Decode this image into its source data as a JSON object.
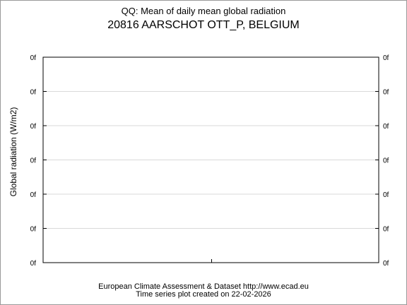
{
  "chart_data": {
    "type": "line",
    "title": "QQ: Mean of daily mean global radiation",
    "subtitle": "20816 AARSCHOT OTT_P, BELGIUM",
    "ylabel": "Global radiation (W/m2)",
    "xlabel": "",
    "y_tick_labels": [
      "0f",
      "0f",
      "0f",
      "0f",
      "0f",
      "0f",
      "0f"
    ],
    "grid": true,
    "series": []
  },
  "footer": {
    "line1": "European Climate Assessment & Dataset  http://www.ecad.eu",
    "line2": "Time series plot created on 22-02-2026"
  }
}
